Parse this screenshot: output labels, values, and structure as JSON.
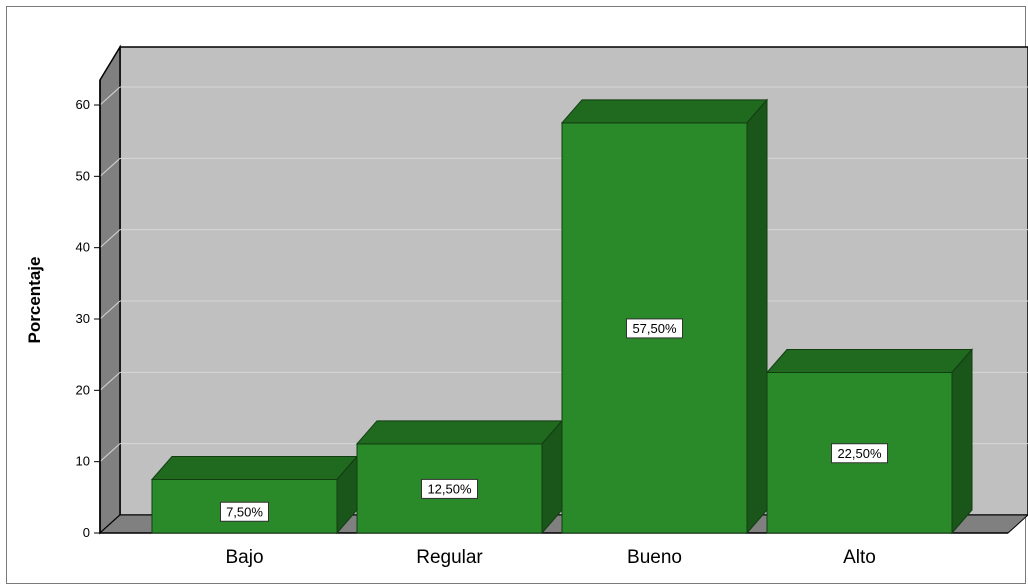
{
  "chart_data": {
    "type": "bar",
    "style": "3d",
    "ylabel": "Porcentaje",
    "xlabel": "",
    "ylim": [
      0,
      60
    ],
    "yticks": [
      0,
      10,
      20,
      30,
      40,
      50,
      60
    ],
    "grid": true,
    "categories": [
      "Bajo",
      "Regular",
      "Bueno",
      "Alto"
    ],
    "values": [
      7.5,
      12.5,
      57.5,
      22.5
    ],
    "labels": [
      "7,50%",
      "12,50%",
      "57,50%",
      "22,50%"
    ],
    "colors": {
      "bar_front": "#2a8a2a",
      "bar_top": "#1f6a1f",
      "bar_side": "#1a551a",
      "plot_back": "#c0c0c0",
      "plot_side": "#808080",
      "plot_floor": "#808080"
    }
  }
}
